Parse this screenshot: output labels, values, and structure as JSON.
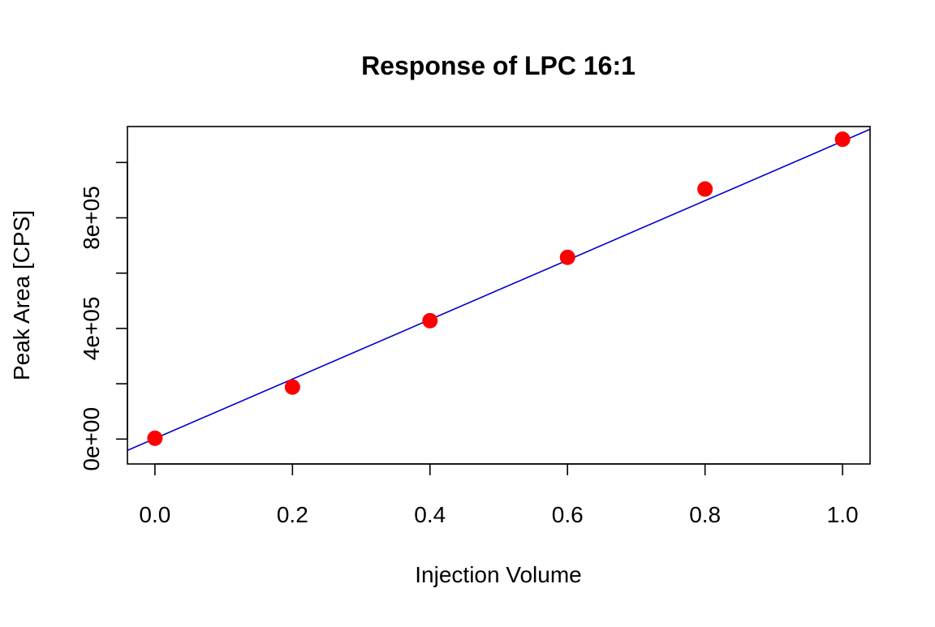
{
  "chart_data": {
    "type": "scatter",
    "title": "Response of LPC 16:1",
    "xlabel": "Injection Volume",
    "ylabel": "Peak Area [CPS]",
    "xlim": [
      -0.04,
      1.04
    ],
    "ylim": [
      -90000,
      1130000
    ],
    "x_ticks": [
      0.0,
      0.2,
      0.4,
      0.6,
      0.8,
      1.0
    ],
    "x_tick_labels": [
      "0.0",
      "0.2",
      "0.4",
      "0.6",
      "0.8",
      "1.0"
    ],
    "y_ticks": [
      0,
      200000,
      400000,
      600000,
      800000,
      1000000
    ],
    "y_tick_labels": [
      "0e+00",
      "",
      "4e+05",
      "",
      "8e+05",
      ""
    ],
    "grid": false,
    "series": [
      {
        "type": "points",
        "color": "#ff0000",
        "x": [
          0.0,
          0.2,
          0.4,
          0.6,
          0.8,
          1.0
        ],
        "y": [
          3000,
          188000,
          428000,
          657000,
          904000,
          1084000
        ]
      }
    ],
    "fit_line": {
      "color": "#0000cc",
      "intercept": 2000,
      "slope": 1075000
    }
  }
}
